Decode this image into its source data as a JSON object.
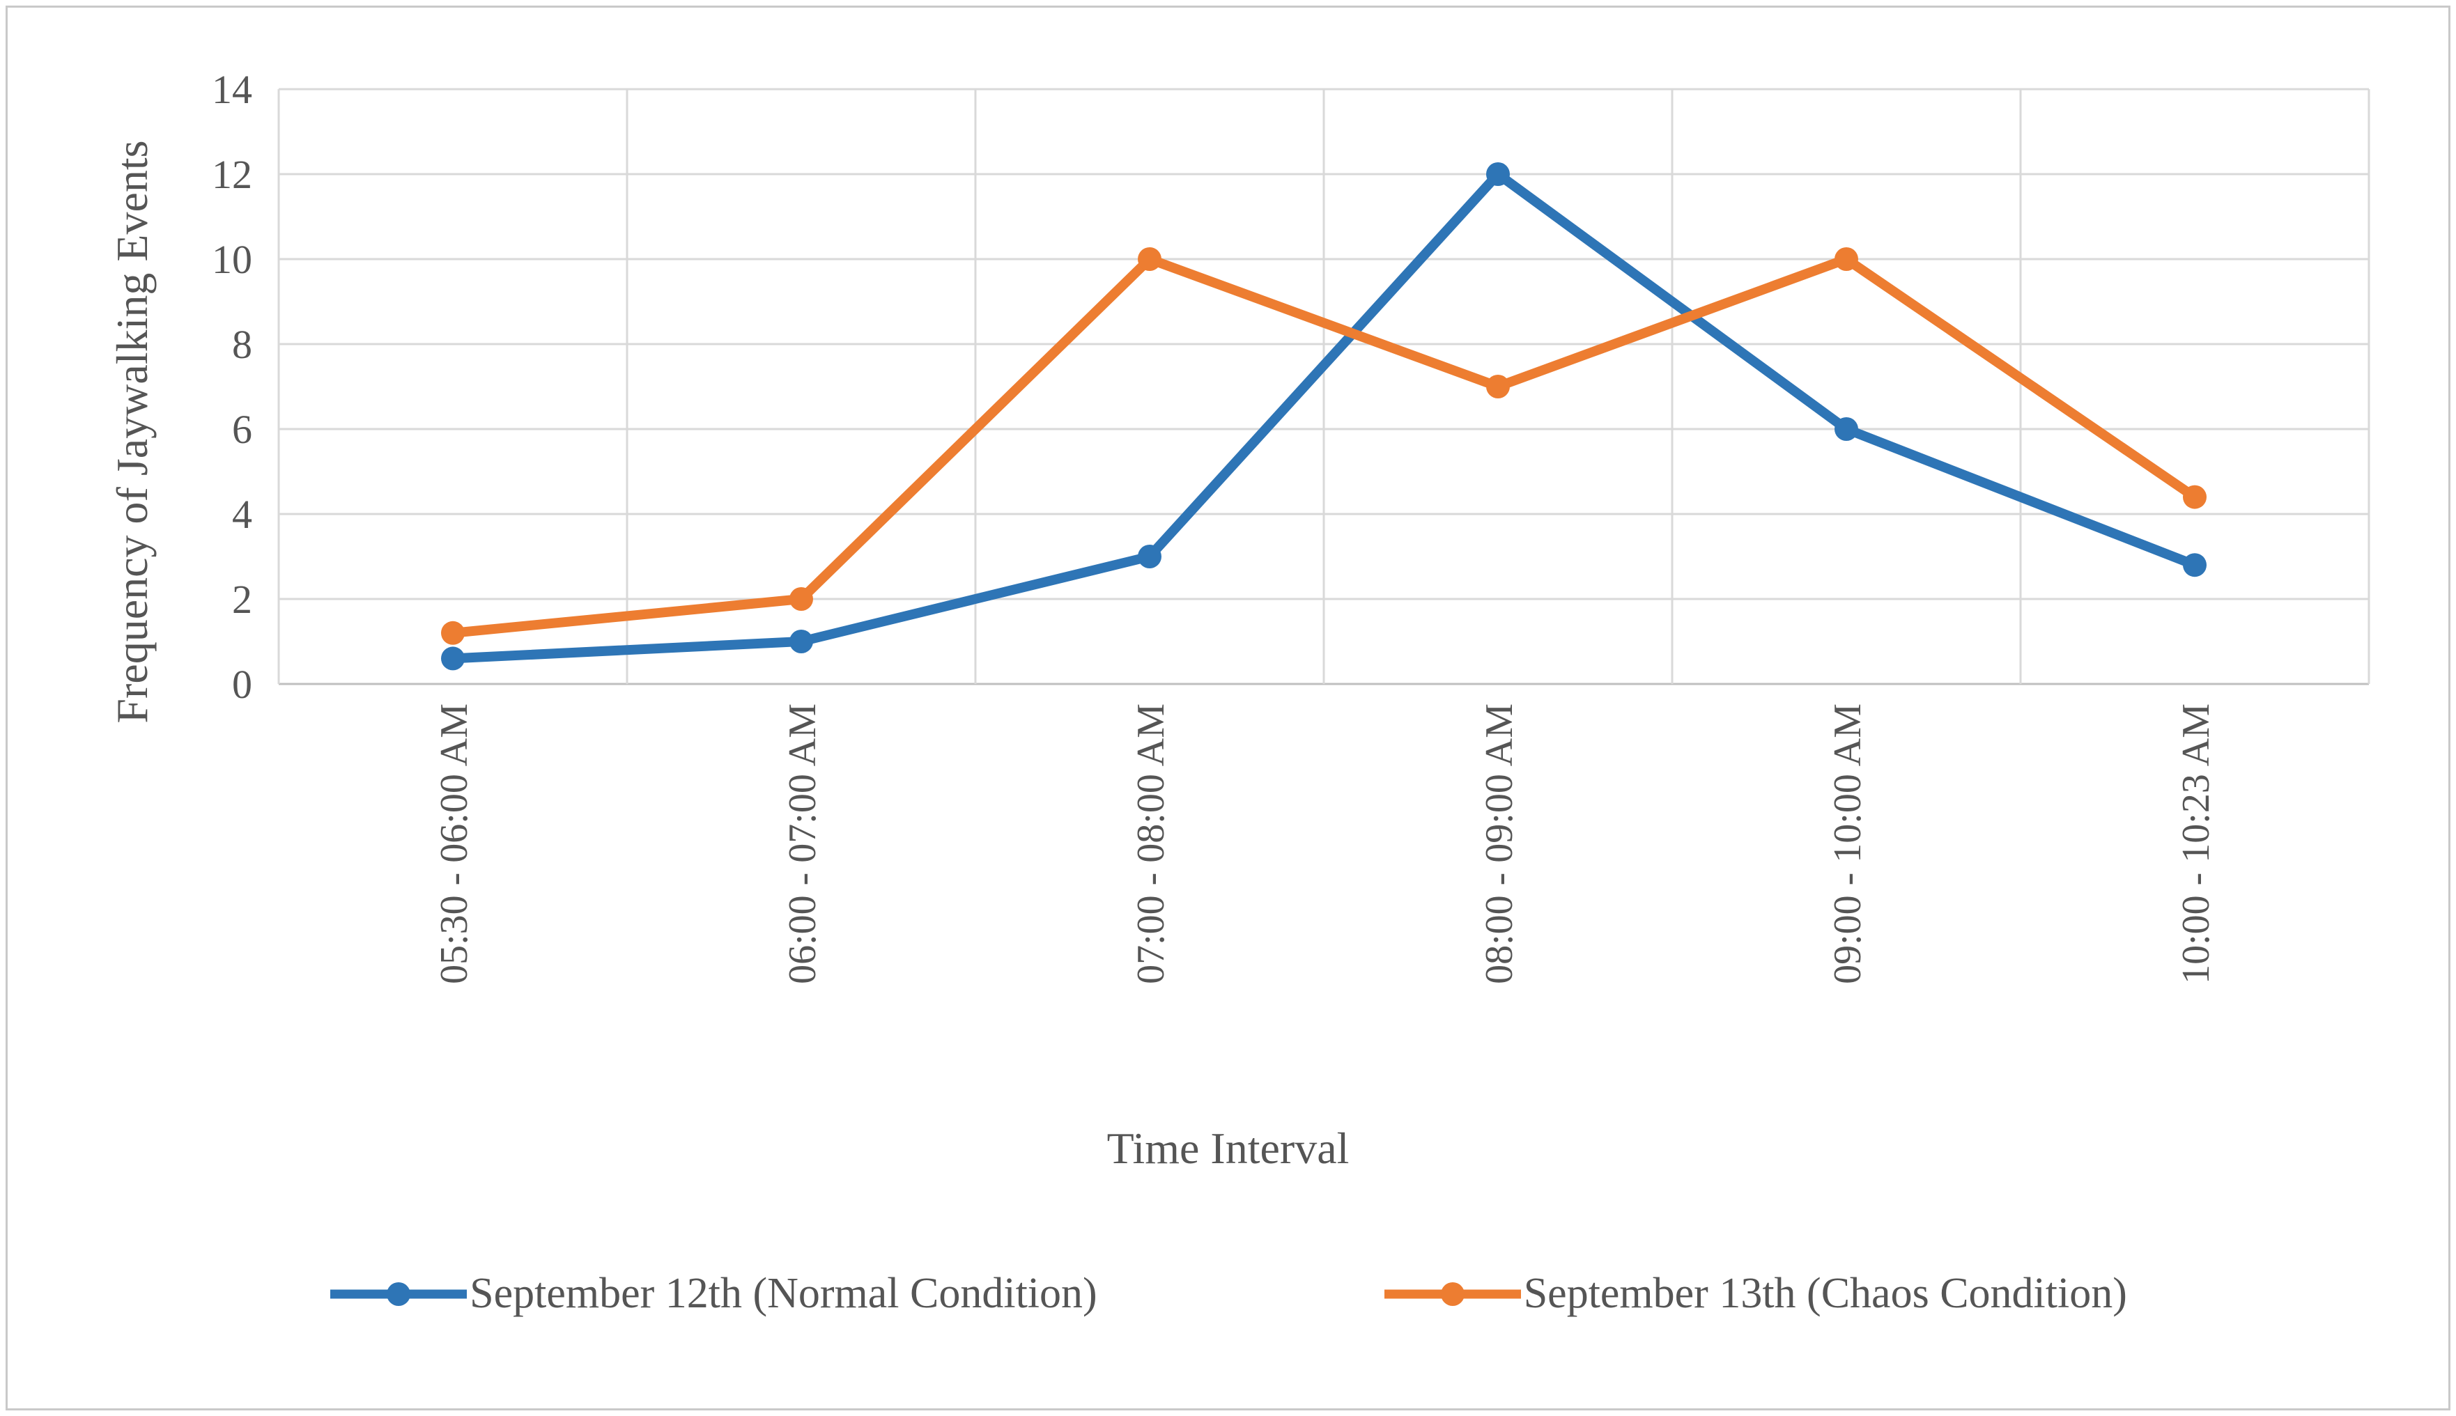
{
  "chart_data": {
    "type": "line",
    "title": "",
    "xlabel": "Time Interval",
    "ylabel": "Frequency of Jaywalking Events",
    "categories": [
      "05:30 - 06:00 AM",
      "06:00 - 07:00 AM",
      "07:00 - 08:00 AM",
      "08:00 - 09:00 AM",
      "09:00 - 10:00 AM",
      "10:00 - 10:23 AM"
    ],
    "series": [
      {
        "name": "September 12th (Normal Condition)",
        "color": "#2e75b6",
        "values": [
          0.6,
          1,
          3,
          12,
          6,
          2.8
        ]
      },
      {
        "name": "September 13th (Chaos Condition)",
        "color": "#ed7d31",
        "values": [
          1.2,
          2,
          10,
          7,
          10,
          4.4
        ]
      }
    ],
    "ylim": [
      0,
      14
    ],
    "ytick_step": 2,
    "grid": true,
    "legend_position": "bottom",
    "colors": {
      "gridline": "#d9d9d9",
      "axis": "#bfbfbf",
      "tick_text": "#555555"
    }
  }
}
